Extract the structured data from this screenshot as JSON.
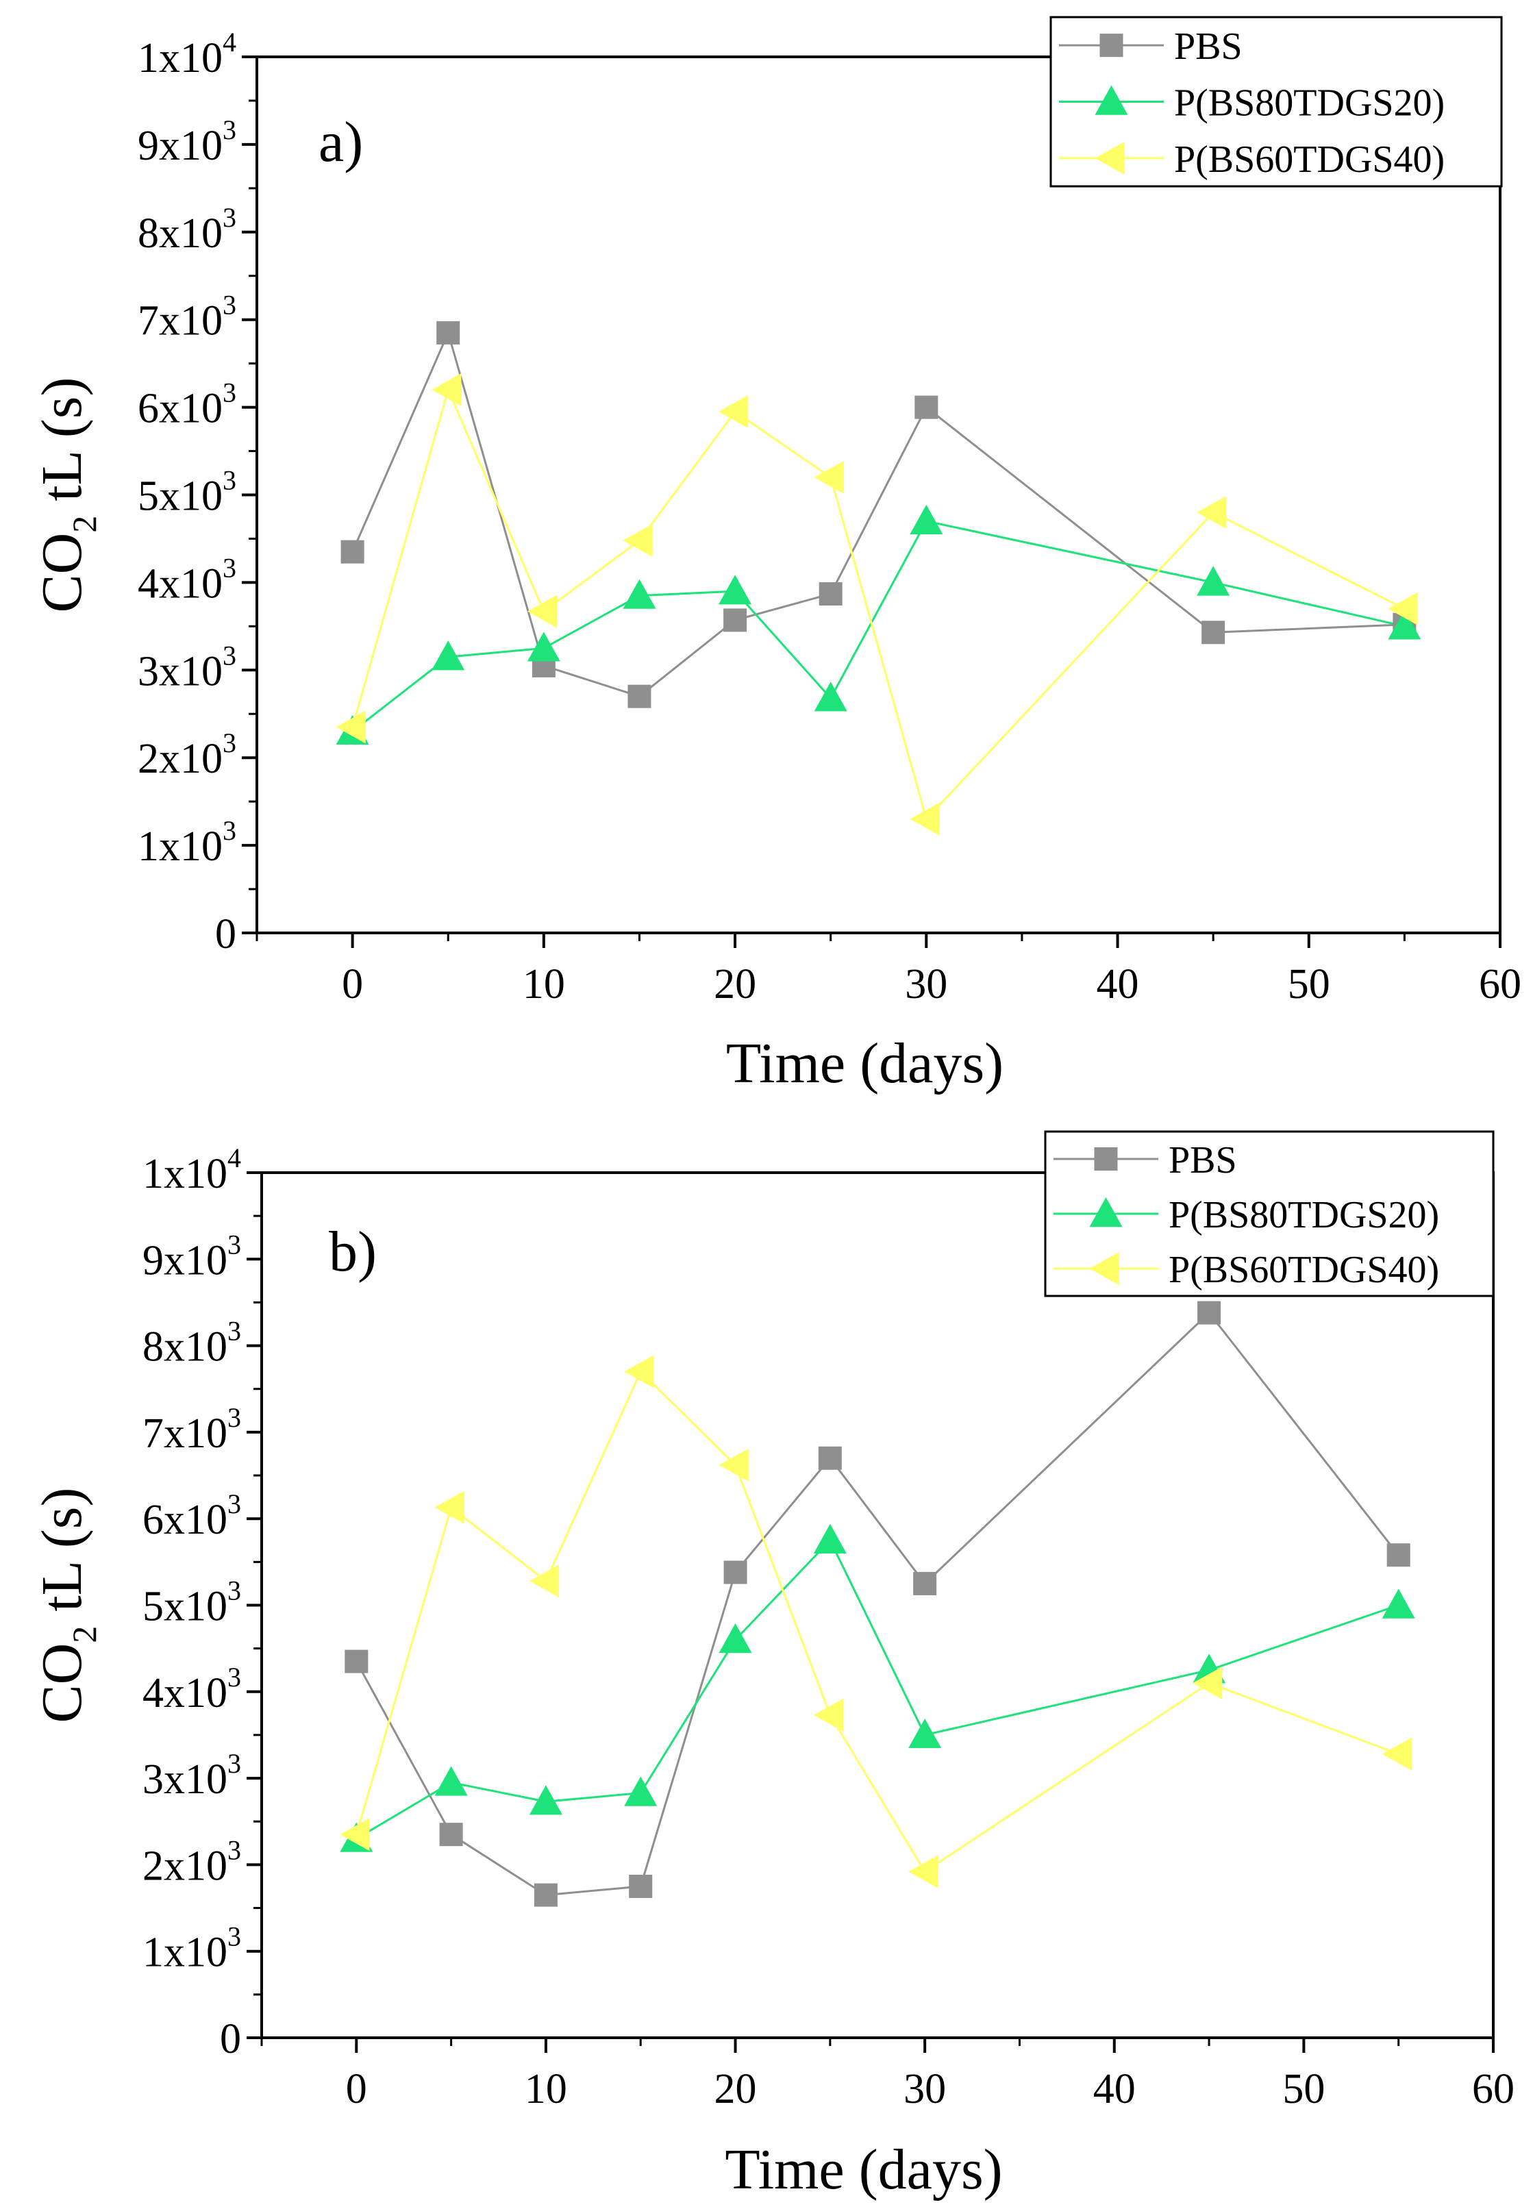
{
  "chart_data": [
    {
      "type": "line",
      "panel_label": "a)",
      "xlabel": "Time (days)",
      "ylabel": {
        "main": "CO",
        "sub": "2",
        "rest": " tL (s)"
      },
      "xlim": [
        -5,
        60
      ],
      "ylim": [
        0,
        10000
      ],
      "xticks": [
        0,
        10,
        20,
        30,
        40,
        50,
        60
      ],
      "xtick_labels": [
        "0",
        "10",
        "20",
        "30",
        "40",
        "50",
        "60"
      ],
      "yticks": [
        0,
        1000,
        2000,
        3000,
        4000,
        5000,
        6000,
        7000,
        8000,
        9000,
        10000
      ],
      "ytick_labels": [
        {
          "base": "0",
          "exp": ""
        },
        {
          "base": "1x10",
          "exp": "3"
        },
        {
          "base": "2x10",
          "exp": "3"
        },
        {
          "base": "3x10",
          "exp": "3"
        },
        {
          "base": "4x10",
          "exp": "3"
        },
        {
          "base": "5x10",
          "exp": "3"
        },
        {
          "base": "6x10",
          "exp": "3"
        },
        {
          "base": "7x10",
          "exp": "3"
        },
        {
          "base": "8x10",
          "exp": "3"
        },
        {
          "base": "9x10",
          "exp": "3"
        },
        {
          "base": "1x10",
          "exp": "4"
        }
      ],
      "legend_position": "top-right",
      "series": [
        {
          "name": "PBS",
          "color": "#8f8f8f",
          "marker": "square",
          "x": [
            0,
            5,
            10,
            15,
            20,
            25,
            30,
            45,
            55
          ],
          "y": [
            4350,
            6850,
            3050,
            2700,
            3570,
            3870,
            6000,
            3430,
            3520
          ]
        },
        {
          "name": "P(BS80TDGS20)",
          "color": "#1de37a",
          "marker": "triangle-up",
          "x": [
            0,
            5,
            10,
            15,
            20,
            25,
            30,
            45,
            55
          ],
          "y": [
            2300,
            3150,
            3250,
            3850,
            3900,
            2680,
            4700,
            4000,
            3500
          ]
        },
        {
          "name": "P(BS60TDGS40)",
          "color": "#ffff66",
          "marker": "triangle-left",
          "x": [
            0,
            5,
            10,
            15,
            20,
            25,
            30,
            45,
            55
          ],
          "y": [
            2350,
            6200,
            3670,
            4480,
            5950,
            5200,
            1300,
            4800,
            3700
          ]
        }
      ]
    },
    {
      "type": "line",
      "panel_label": "b)",
      "xlabel": "Time (days)",
      "ylabel": {
        "main": "CO",
        "sub": "2",
        "rest": " tL (s)"
      },
      "xlim": [
        -5,
        60
      ],
      "ylim": [
        0,
        10000
      ],
      "xticks": [
        0,
        10,
        20,
        30,
        40,
        50,
        60
      ],
      "xtick_labels": [
        "0",
        "10",
        "20",
        "30",
        "40",
        "50",
        "60"
      ],
      "yticks": [
        0,
        1000,
        2000,
        3000,
        4000,
        5000,
        6000,
        7000,
        8000,
        9000,
        10000
      ],
      "ytick_labels": [
        {
          "base": "0",
          "exp": ""
        },
        {
          "base": "1x10",
          "exp": "3"
        },
        {
          "base": "2x10",
          "exp": "3"
        },
        {
          "base": "3x10",
          "exp": "3"
        },
        {
          "base": "4x10",
          "exp": "3"
        },
        {
          "base": "5x10",
          "exp": "3"
        },
        {
          "base": "6x10",
          "exp": "3"
        },
        {
          "base": "7x10",
          "exp": "3"
        },
        {
          "base": "8x10",
          "exp": "3"
        },
        {
          "base": "9x10",
          "exp": "3"
        },
        {
          "base": "1x10",
          "exp": "4"
        }
      ],
      "legend_position": "top-right",
      "series": [
        {
          "name": "PBS",
          "color": "#8f8f8f",
          "marker": "square",
          "x": [
            0,
            5,
            10,
            15,
            20,
            25,
            30,
            45,
            55
          ],
          "y": [
            4350,
            2350,
            1650,
            1750,
            5380,
            6700,
            5250,
            8380,
            5580
          ]
        },
        {
          "name": "P(BS80TDGS20)",
          "color": "#1de37a",
          "marker": "triangle-up",
          "x": [
            0,
            5,
            10,
            15,
            20,
            25,
            30,
            45,
            55
          ],
          "y": [
            2300,
            2950,
            2730,
            2830,
            4600,
            5750,
            3500,
            4250,
            5000
          ]
        },
        {
          "name": "P(BS60TDGS40)",
          "color": "#ffff66",
          "marker": "triangle-left",
          "x": [
            0,
            5,
            10,
            15,
            20,
            25,
            30,
            45,
            55
          ],
          "y": [
            2350,
            6130,
            5280,
            7700,
            6620,
            3730,
            1920,
            4100,
            3280
          ]
        }
      ]
    }
  ]
}
